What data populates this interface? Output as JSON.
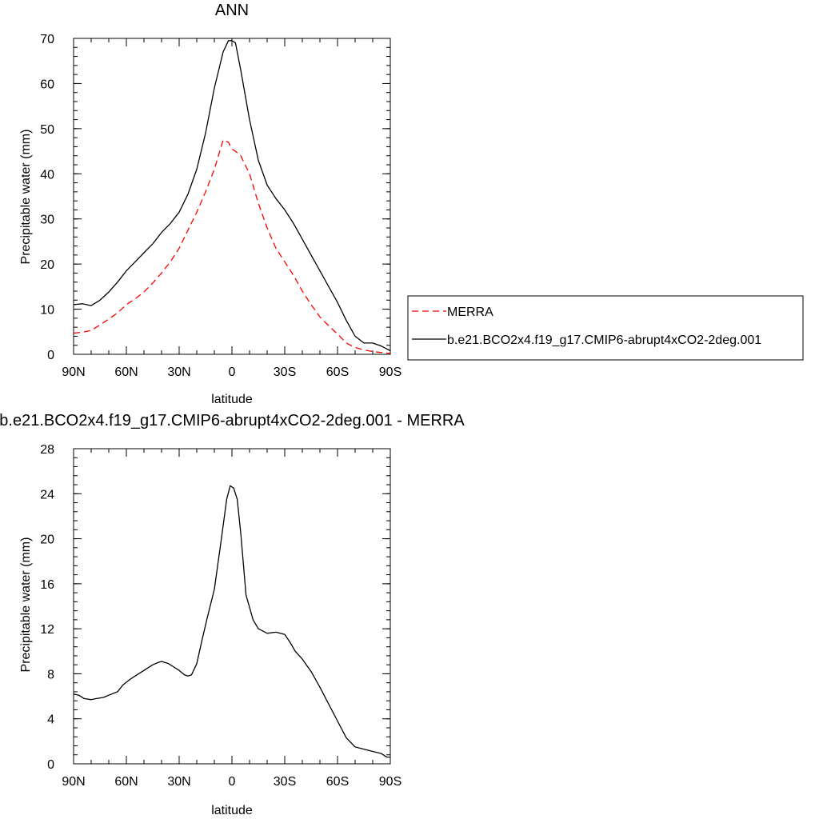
{
  "chart_data": [
    {
      "type": "line",
      "title": "ANN",
      "xlabel": "latitude",
      "ylabel": "Precipitable water (mm)",
      "xlim": [
        90,
        -90
      ],
      "ylim": [
        0,
        70
      ],
      "x_ticks": [
        90,
        60,
        30,
        0,
        -30,
        -60,
        -90
      ],
      "x_tick_labels": [
        "90N",
        "60N",
        "30N",
        "0",
        "30S",
        "60S",
        "90S"
      ],
      "y_ticks": [
        0,
        10,
        20,
        30,
        40,
        50,
        60,
        70
      ],
      "y_tick_labels": [
        "0",
        "10",
        "20",
        "30",
        "40",
        "50",
        "60",
        "70"
      ],
      "legend_position": "right",
      "series": [
        {
          "name": "MERRA",
          "color": "#ff0000",
          "dash": "dashed",
          "x": [
            90,
            85,
            80,
            75,
            70,
            65,
            60,
            55,
            50,
            45,
            40,
            35,
            30,
            25,
            20,
            15,
            10,
            5,
            2,
            0,
            -2,
            -5,
            -10,
            -15,
            -20,
            -25,
            -30,
            -35,
            -40,
            -45,
            -50,
            -55,
            -60,
            -65,
            -70,
            -75,
            -80,
            -85,
            -90
          ],
          "y": [
            4.7,
            4.9,
            5.3,
            6.5,
            7.8,
            9.2,
            11.0,
            12.3,
            13.8,
            15.8,
            18.0,
            20.5,
            23.5,
            27.5,
            31.5,
            36.0,
            41.0,
            47.5,
            47.0,
            45.5,
            45.0,
            44.0,
            40.0,
            33.5,
            28.0,
            23.5,
            20.5,
            17.5,
            14.0,
            11.0,
            8.3,
            6.3,
            4.5,
            2.5,
            1.5,
            1.0,
            0.6,
            0.4,
            0.2
          ]
        },
        {
          "name": "b.e21.BCO2x4.f19_g17.CMIP6-abrupt4xCO2-2deg.001",
          "color": "#000000",
          "dash": "solid",
          "x": [
            90,
            85,
            80,
            75,
            70,
            65,
            60,
            55,
            50,
            45,
            40,
            35,
            30,
            25,
            20,
            15,
            10,
            5,
            2,
            0,
            -2,
            -5,
            -10,
            -15,
            -20,
            -25,
            -30,
            -35,
            -40,
            -45,
            -50,
            -55,
            -60,
            -65,
            -70,
            -75,
            -80,
            -85,
            -90
          ],
          "y": [
            11.0,
            11.2,
            10.8,
            12.0,
            13.8,
            16.0,
            18.5,
            20.5,
            22.5,
            24.5,
            27.0,
            29.0,
            31.5,
            35.5,
            41.0,
            49.0,
            59.0,
            67.0,
            69.5,
            69.5,
            69.0,
            63.0,
            52.0,
            43.0,
            37.5,
            34.5,
            32.0,
            29.0,
            25.5,
            22.0,
            18.5,
            15.0,
            11.5,
            7.5,
            4.0,
            2.5,
            2.5,
            1.8,
            0.8
          ]
        }
      ]
    },
    {
      "type": "line",
      "title": "b.e21.BCO2x4.f19_g17.CMIP6-abrupt4xCO2-2deg.001 - MERRA",
      "xlabel": "latitude",
      "ylabel": "Precipitable water (mm)",
      "xlim": [
        90,
        -90
      ],
      "ylim": [
        0,
        28
      ],
      "x_ticks": [
        90,
        60,
        30,
        0,
        -30,
        -60,
        -90
      ],
      "x_tick_labels": [
        "90N",
        "60N",
        "30N",
        "0",
        "30S",
        "60S",
        "90S"
      ],
      "y_ticks": [
        0,
        4,
        8,
        12,
        16,
        20,
        24,
        28
      ],
      "y_tick_labels": [
        "0",
        "4",
        "8",
        "12",
        "16",
        "20",
        "24",
        "28"
      ],
      "series": [
        {
          "color": "#000000",
          "dash": "solid",
          "x": [
            90,
            87,
            84,
            80,
            77,
            73,
            70,
            65,
            62,
            58,
            55,
            50,
            45,
            42,
            40,
            38,
            36,
            33,
            30,
            27,
            25,
            23,
            20,
            17,
            14,
            10,
            6,
            3,
            1,
            -1,
            -3,
            -5,
            -8,
            -12,
            -15,
            -20,
            -25,
            -30,
            -33,
            -36,
            -40,
            -45,
            -50,
            -55,
            -60,
            -65,
            -70,
            -75,
            -80,
            -85,
            -88,
            -90
          ],
          "y": [
            6.2,
            6.1,
            5.8,
            5.7,
            5.8,
            5.9,
            6.1,
            6.4,
            7.0,
            7.5,
            7.8,
            8.3,
            8.8,
            9.0,
            9.1,
            9.0,
            8.9,
            8.6,
            8.3,
            7.9,
            7.8,
            7.9,
            8.9,
            11.0,
            13.0,
            15.5,
            20.0,
            23.5,
            24.7,
            24.5,
            23.5,
            20.5,
            15.0,
            12.8,
            12.0,
            11.6,
            11.7,
            11.5,
            10.8,
            10.0,
            9.3,
            8.2,
            6.8,
            5.3,
            3.8,
            2.3,
            1.5,
            1.3,
            1.1,
            0.9,
            0.6,
            0.6
          ]
        }
      ]
    }
  ]
}
